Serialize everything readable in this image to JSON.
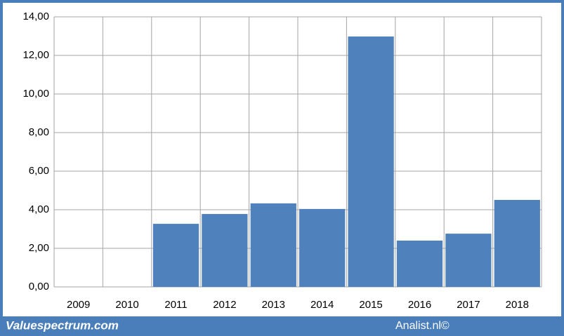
{
  "chart_data": {
    "type": "bar",
    "categories": [
      "2009",
      "2010",
      "2011",
      "2012",
      "2013",
      "2014",
      "2015",
      "2016",
      "2017",
      "2018"
    ],
    "values": [
      null,
      null,
      3.27,
      3.78,
      4.33,
      4.04,
      12.98,
      2.4,
      2.76,
      4.51
    ],
    "color": "#4f81bd",
    "ylim": [
      0,
      14
    ],
    "yticks": [
      {
        "value": 0,
        "label": "0,00"
      },
      {
        "value": 2,
        "label": "2,00"
      },
      {
        "value": 4,
        "label": "4,00"
      },
      {
        "value": 6,
        "label": "6,00"
      },
      {
        "value": 8,
        "label": "8,00"
      },
      {
        "value": 10,
        "label": "10,00"
      },
      {
        "value": 12,
        "label": "12,00"
      },
      {
        "value": 14,
        "label": "14,00"
      }
    ],
    "grid": true,
    "watermarks": [
      "Valuespectrum.com",
      "Analist.nl©"
    ]
  }
}
